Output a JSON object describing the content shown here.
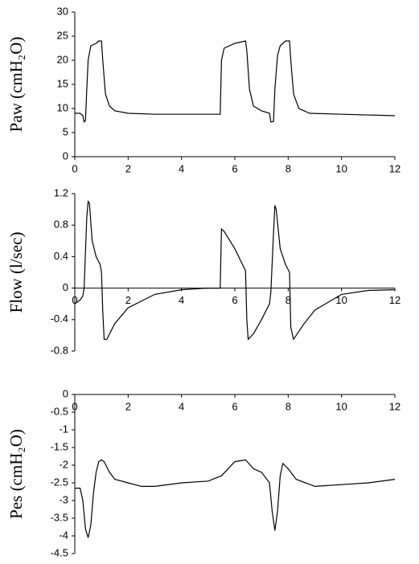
{
  "chart_data": [
    {
      "type": "line",
      "ylabel": "Paw (cmH₂O)",
      "color": "#000000",
      "x": [
        0,
        0.2,
        0.3,
        0.35,
        0.4,
        0.45,
        0.5,
        0.6,
        0.8,
        0.9,
        1.0,
        1.05,
        1.15,
        1.3,
        1.5,
        2,
        3,
        4,
        5,
        5.45,
        5.5,
        5.6,
        6,
        6.4,
        6.45,
        6.55,
        6.7,
        7,
        7.3,
        7.35,
        7.45,
        7.5,
        7.6,
        7.7,
        7.9,
        8.05,
        8.1,
        8.2,
        8.4,
        8.8,
        10,
        12
      ],
      "values": [
        9,
        9,
        8.5,
        7.2,
        7.5,
        14,
        20,
        23,
        23.5,
        24,
        24,
        20,
        13,
        10.5,
        9.5,
        9,
        8.8,
        8.8,
        8.8,
        8.8,
        20,
        22.5,
        23.5,
        24,
        22,
        14,
        10.5,
        9.5,
        9,
        7.2,
        7.3,
        14,
        21,
        23,
        24,
        24,
        20,
        13,
        10,
        9,
        8.8,
        8.5
      ],
      "xlim": [
        0,
        12
      ],
      "xticks": [
        0,
        2,
        4,
        6,
        8,
        10,
        12
      ],
      "ylim": [
        0,
        30
      ],
      "yticks": [
        0,
        5,
        10,
        15,
        20,
        25,
        30
      ]
    },
    {
      "type": "line",
      "ylabel": "Flow (l/sec)",
      "color": "#000000",
      "x": [
        0,
        0.2,
        0.3,
        0.35,
        0.45,
        0.5,
        0.55,
        0.65,
        0.8,
        0.95,
        1.0,
        1.05,
        1.1,
        1.2,
        1.5,
        2,
        3,
        4,
        5,
        5.45,
        5.5,
        5.6,
        6,
        6.4,
        6.45,
        6.5,
        6.7,
        7,
        7.3,
        7.35,
        7.45,
        7.5,
        7.55,
        7.7,
        7.9,
        8.05,
        8.1,
        8.2,
        8.6,
        9,
        10,
        11,
        12
      ],
      "values": [
        -0.2,
        -0.15,
        -0.1,
        0,
        0.9,
        1.1,
        1.08,
        0.6,
        0.4,
        0.3,
        0.2,
        -0.3,
        -0.65,
        -0.65,
        -0.45,
        -0.25,
        -0.08,
        -0.02,
        0,
        0,
        0.75,
        0.72,
        0.5,
        0.22,
        -0.4,
        -0.65,
        -0.58,
        -0.4,
        -0.2,
        -0.05,
        0.7,
        1.05,
        1.0,
        0.5,
        0.3,
        0.2,
        -0.5,
        -0.65,
        -0.45,
        -0.28,
        -0.08,
        -0.03,
        -0.02
      ],
      "xlim": [
        0,
        12
      ],
      "xticks": [
        0,
        2,
        4,
        6,
        8,
        10,
        12
      ],
      "ylim": [
        -0.8,
        1.2
      ],
      "yticks": [
        -0.8,
        -0.4,
        0,
        0.4,
        0.8,
        1.2
      ]
    },
    {
      "type": "line",
      "ylabel": "Pes (cmH₂O)",
      "color": "#000000",
      "x": [
        0,
        0.2,
        0.3,
        0.4,
        0.5,
        0.6,
        0.7,
        0.8,
        0.9,
        1.0,
        1.1,
        1.3,
        1.5,
        2,
        2.5,
        3,
        4,
        5,
        5.5,
        6,
        6.4,
        6.7,
        7,
        7.3,
        7.4,
        7.5,
        7.6,
        7.7,
        7.8,
        8,
        8.3,
        9,
        10,
        11,
        12
      ],
      "values": [
        -2.65,
        -2.65,
        -3.0,
        -3.8,
        -4.05,
        -3.7,
        -2.8,
        -2.2,
        -1.9,
        -1.85,
        -1.9,
        -2.2,
        -2.4,
        -2.5,
        -2.6,
        -2.6,
        -2.5,
        -2.45,
        -2.3,
        -1.9,
        -1.85,
        -2.1,
        -2.2,
        -2.5,
        -3.3,
        -3.85,
        -3.3,
        -2.3,
        -1.95,
        -2.1,
        -2.4,
        -2.6,
        -2.55,
        -2.5,
        -2.4
      ],
      "xlim": [
        0,
        12
      ],
      "xticks": [
        0,
        2,
        4,
        6,
        8,
        10,
        12
      ],
      "ylim": [
        -4.5,
        0
      ],
      "yticks": [
        -4.5,
        -4,
        -3.5,
        -3,
        -2.5,
        -2,
        -1.5,
        -1,
        -0.5,
        0
      ]
    }
  ]
}
